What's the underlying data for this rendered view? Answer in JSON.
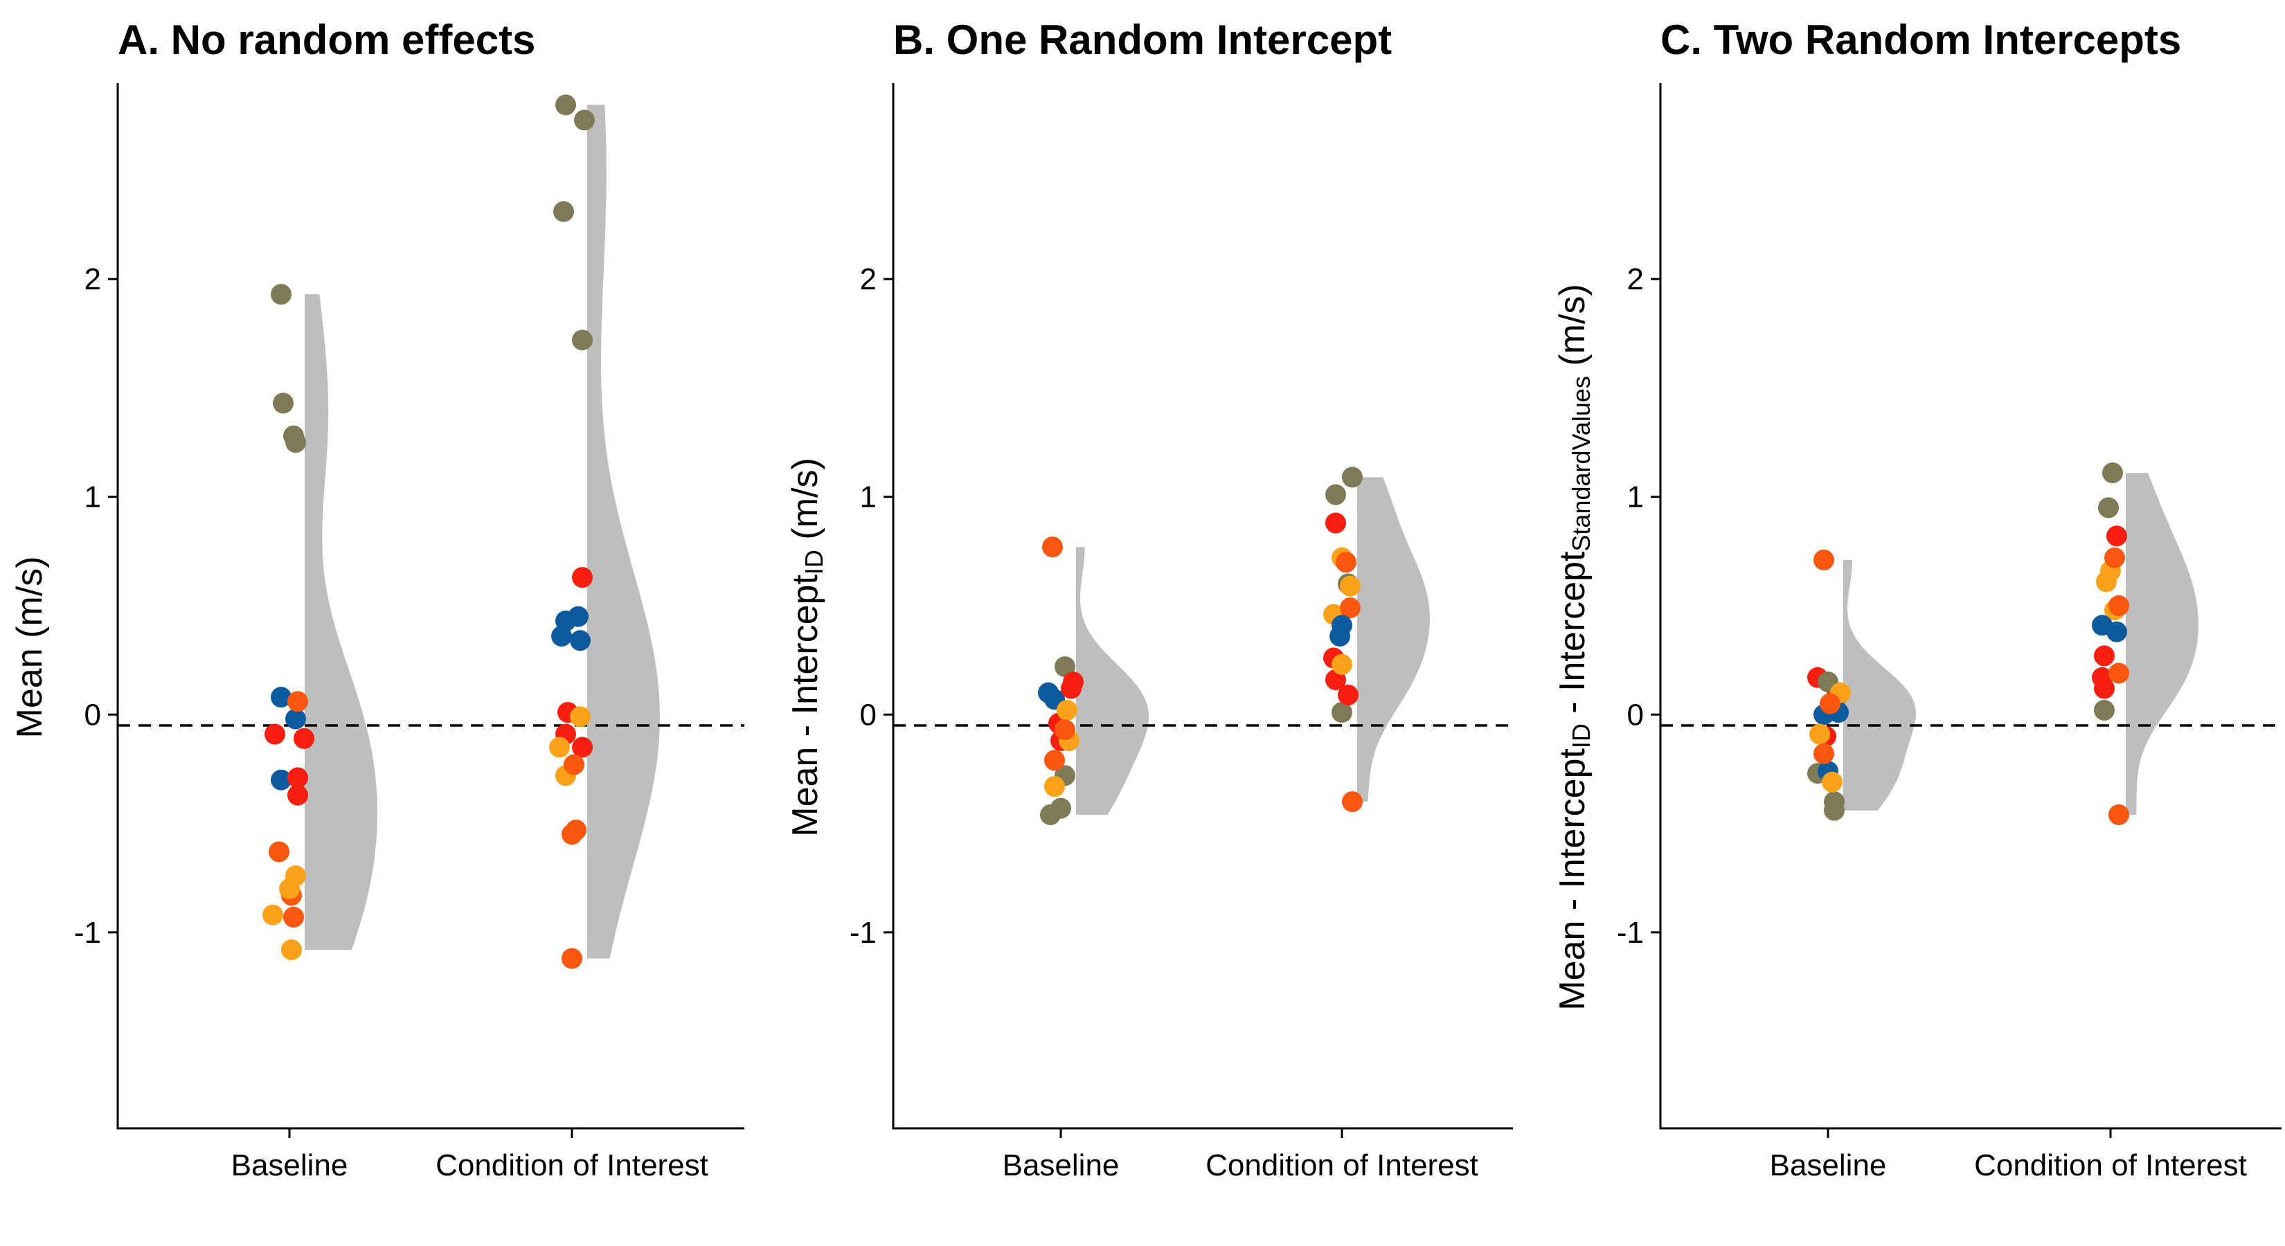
{
  "chart_data": [
    {
      "type": "scatter",
      "title": "A. No random effects",
      "ylabel": "Mean (m/s)",
      "ylabel_parts": [
        {
          "text": "Mean (m/s)"
        }
      ],
      "categories": [
        "Baseline",
        "Condition of Interest"
      ],
      "ylim": [
        -1.9,
        2.9
      ],
      "yticks": [
        -1,
        0,
        1,
        2
      ],
      "ytick_labels": [
        "-1",
        "0",
        "1",
        "2"
      ],
      "reference_line_y": -0.05,
      "points": {
        "Baseline": [
          {
            "x": -0.04,
            "y": 1.93,
            "c": "olive"
          },
          {
            "x": -0.03,
            "y": 1.43,
            "c": "olive"
          },
          {
            "x": 0.02,
            "y": 1.28,
            "c": "olive"
          },
          {
            "x": 0.03,
            "y": 1.25,
            "c": "olive"
          },
          {
            "x": -0.04,
            "y": 0.08,
            "c": "blue"
          },
          {
            "x": 0.03,
            "y": -0.02,
            "c": "blue"
          },
          {
            "x": -0.04,
            "y": -0.3,
            "c": "blue"
          },
          {
            "x": 0.04,
            "y": 0.06,
            "c": "orange"
          },
          {
            "x": -0.05,
            "y": -0.63,
            "c": "orange"
          },
          {
            "x": 0.01,
            "y": -0.83,
            "c": "orange"
          },
          {
            "x": 0.02,
            "y": -0.93,
            "c": "orange"
          },
          {
            "x": -0.07,
            "y": -0.09,
            "c": "red"
          },
          {
            "x": 0.07,
            "y": -0.11,
            "c": "red"
          },
          {
            "x": 0.04,
            "y": -0.29,
            "c": "red"
          },
          {
            "x": 0.04,
            "y": -0.37,
            "c": "red"
          },
          {
            "x": 0.03,
            "y": -0.74,
            "c": "amber"
          },
          {
            "x": 0.0,
            "y": -0.8,
            "c": "amber"
          },
          {
            "x": -0.08,
            "y": -0.92,
            "c": "amber"
          },
          {
            "x": 0.01,
            "y": -1.08,
            "c": "amber"
          }
        ],
        "Condition of Interest": [
          {
            "x": -0.03,
            "y": 2.8,
            "c": "olive"
          },
          {
            "x": 0.06,
            "y": 2.73,
            "c": "olive"
          },
          {
            "x": -0.04,
            "y": 2.31,
            "c": "olive"
          },
          {
            "x": 0.05,
            "y": 1.72,
            "c": "olive"
          },
          {
            "x": -0.03,
            "y": 0.43,
            "c": "blue"
          },
          {
            "x": 0.03,
            "y": 0.45,
            "c": "blue"
          },
          {
            "x": -0.05,
            "y": 0.36,
            "c": "blue"
          },
          {
            "x": 0.04,
            "y": 0.34,
            "c": "blue"
          },
          {
            "x": 0.05,
            "y": 0.63,
            "c": "red"
          },
          {
            "x": -0.02,
            "y": 0.01,
            "c": "red"
          },
          {
            "x": -0.03,
            "y": -0.09,
            "c": "red"
          },
          {
            "x": 0.05,
            "y": -0.15,
            "c": "red"
          },
          {
            "x": 0.04,
            "y": -0.01,
            "c": "amber"
          },
          {
            "x": -0.06,
            "y": -0.15,
            "c": "amber"
          },
          {
            "x": -0.03,
            "y": -0.28,
            "c": "amber"
          },
          {
            "x": 0.01,
            "y": -0.23,
            "c": "orange"
          },
          {
            "x": 0.02,
            "y": -0.53,
            "c": "orange"
          },
          {
            "x": 0.0,
            "y": -0.55,
            "c": "orange"
          },
          {
            "x": 0.0,
            "y": -1.12,
            "c": "orange"
          }
        ]
      }
    },
    {
      "type": "scatter",
      "title": "B. One Random Intercept",
      "ylabel": "Mean - InterceptID (m/s)",
      "ylabel_parts": [
        {
          "text": "Mean - Intercept"
        },
        {
          "text": "ID",
          "sub": true
        },
        {
          "text": " (m/s)"
        }
      ],
      "categories": [
        "Baseline",
        "Condition of Interest"
      ],
      "ylim": [
        -1.9,
        2.9
      ],
      "yticks": [
        -1,
        0,
        1,
        2
      ],
      "ytick_labels": [
        "-1",
        "0",
        "1",
        "2"
      ],
      "reference_line_y": -0.05,
      "points": {
        "Baseline": [
          {
            "x": -0.04,
            "y": 0.77,
            "c": "orange"
          },
          {
            "x": 0.02,
            "y": 0.22,
            "c": "olive"
          },
          {
            "x": 0.02,
            "y": -0.28,
            "c": "olive"
          },
          {
            "x": 0.0,
            "y": -0.43,
            "c": "olive"
          },
          {
            "x": -0.05,
            "y": -0.46,
            "c": "olive"
          },
          {
            "x": -0.06,
            "y": 0.1,
            "c": "blue"
          },
          {
            "x": -0.03,
            "y": 0.07,
            "c": "blue"
          },
          {
            "x": 0.06,
            "y": 0.15,
            "c": "red"
          },
          {
            "x": 0.05,
            "y": 0.12,
            "c": "red"
          },
          {
            "x": -0.01,
            "y": -0.04,
            "c": "red"
          },
          {
            "x": 0.0,
            "y": -0.12,
            "c": "red"
          },
          {
            "x": 0.03,
            "y": 0.02,
            "c": "amber"
          },
          {
            "x": 0.04,
            "y": -0.12,
            "c": "amber"
          },
          {
            "x": -0.03,
            "y": -0.33,
            "c": "amber"
          },
          {
            "x": -0.03,
            "y": -0.21,
            "c": "orange"
          },
          {
            "x": 0.02,
            "y": -0.07,
            "c": "orange"
          }
        ],
        "Condition of Interest": [
          {
            "x": -0.03,
            "y": 1.01,
            "c": "olive"
          },
          {
            "x": 0.05,
            "y": 1.09,
            "c": "olive"
          },
          {
            "x": 0.03,
            "y": 0.6,
            "c": "olive"
          },
          {
            "x": 0.0,
            "y": 0.01,
            "c": "olive"
          },
          {
            "x": -0.03,
            "y": 0.88,
            "c": "red"
          },
          {
            "x": -0.04,
            "y": 0.26,
            "c": "red"
          },
          {
            "x": -0.03,
            "y": 0.16,
            "c": "red"
          },
          {
            "x": 0.03,
            "y": 0.09,
            "c": "red"
          },
          {
            "x": 0.0,
            "y": 0.72,
            "c": "amber"
          },
          {
            "x": -0.04,
            "y": 0.46,
            "c": "amber"
          },
          {
            "x": 0.0,
            "y": 0.23,
            "c": "amber"
          },
          {
            "x": 0.04,
            "y": 0.59,
            "c": "amber"
          },
          {
            "x": 0.02,
            "y": 0.7,
            "c": "orange"
          },
          {
            "x": 0.04,
            "y": 0.49,
            "c": "orange"
          },
          {
            "x": 0.05,
            "y": -0.4,
            "c": "orange"
          },
          {
            "x": 0.0,
            "y": 0.41,
            "c": "blue"
          },
          {
            "x": -0.01,
            "y": 0.36,
            "c": "blue"
          }
        ]
      }
    },
    {
      "type": "scatter",
      "title": "C. Two Random Intercepts",
      "ylabel": "Mean - InterceptID - InterceptStandardValues (m/s)",
      "ylabel_parts": [
        {
          "text": "Mean - Intercept"
        },
        {
          "text": "ID",
          "sub": true
        },
        {
          "text": " - Intercept"
        },
        {
          "text": "StandardValues",
          "sub": true
        },
        {
          "text": " (m/s)"
        }
      ],
      "categories": [
        "Baseline",
        "Condition of Interest"
      ],
      "ylim": [
        -1.9,
        2.9
      ],
      "yticks": [
        -1,
        0,
        1,
        2
      ],
      "ytick_labels": [
        "-1",
        "0",
        "1",
        "2"
      ],
      "reference_line_y": -0.05,
      "points": {
        "Baseline": [
          {
            "x": -0.02,
            "y": 0.71,
            "c": "orange"
          },
          {
            "x": -0.05,
            "y": 0.17,
            "c": "red"
          },
          {
            "x": 0.04,
            "y": 0.08,
            "c": "red"
          },
          {
            "x": -0.01,
            "y": -0.1,
            "c": "red"
          },
          {
            "x": 0.0,
            "y": 0.15,
            "c": "olive"
          },
          {
            "x": -0.05,
            "y": -0.27,
            "c": "olive"
          },
          {
            "x": 0.03,
            "y": -0.4,
            "c": "olive"
          },
          {
            "x": 0.03,
            "y": -0.44,
            "c": "olive"
          },
          {
            "x": -0.02,
            "y": 0.0,
            "c": "blue"
          },
          {
            "x": 0.05,
            "y": 0.01,
            "c": "blue"
          },
          {
            "x": 0.0,
            "y": -0.26,
            "c": "blue"
          },
          {
            "x": 0.06,
            "y": 0.1,
            "c": "amber"
          },
          {
            "x": -0.04,
            "y": -0.09,
            "c": "amber"
          },
          {
            "x": 0.02,
            "y": -0.31,
            "c": "amber"
          },
          {
            "x": 0.01,
            "y": 0.05,
            "c": "orange"
          },
          {
            "x": -0.02,
            "y": -0.18,
            "c": "orange"
          }
        ],
        "Condition of Interest": [
          {
            "x": 0.01,
            "y": 1.11,
            "c": "olive"
          },
          {
            "x": -0.01,
            "y": 0.95,
            "c": "olive"
          },
          {
            "x": -0.03,
            "y": 0.02,
            "c": "olive"
          },
          {
            "x": 0.03,
            "y": 0.82,
            "c": "red"
          },
          {
            "x": -0.03,
            "y": 0.27,
            "c": "red"
          },
          {
            "x": -0.04,
            "y": 0.17,
            "c": "red"
          },
          {
            "x": -0.03,
            "y": 0.12,
            "c": "red"
          },
          {
            "x": -0.02,
            "y": 0.61,
            "c": "amber"
          },
          {
            "x": 0.0,
            "y": 0.66,
            "c": "amber"
          },
          {
            "x": 0.02,
            "y": 0.48,
            "c": "amber"
          },
          {
            "x": 0.02,
            "y": 0.72,
            "c": "orange"
          },
          {
            "x": 0.04,
            "y": 0.5,
            "c": "orange"
          },
          {
            "x": 0.04,
            "y": 0.19,
            "c": "orange"
          },
          {
            "x": 0.04,
            "y": -0.46,
            "c": "orange"
          },
          {
            "x": -0.04,
            "y": 0.41,
            "c": "blue"
          },
          {
            "x": 0.03,
            "y": 0.38,
            "c": "blue"
          }
        ]
      }
    }
  ],
  "colors": {
    "olive": "#7f7a56",
    "blue": "#0d5b9e",
    "red": "#f51e10",
    "orange": "#f9560f",
    "amber": "#fba21a",
    "violin": "#bebebe"
  }
}
